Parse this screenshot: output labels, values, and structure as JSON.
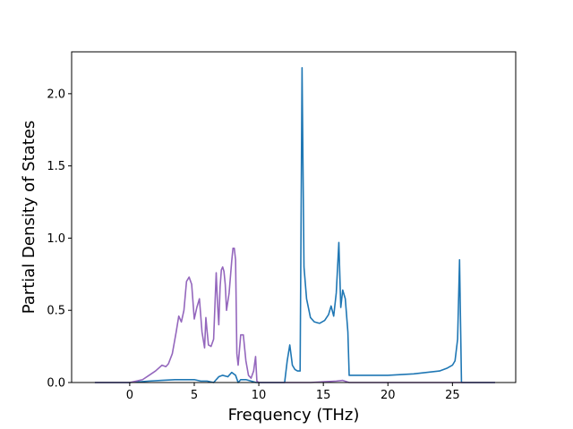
{
  "chart_data": {
    "type": "line",
    "title": "",
    "xlabel": "Frequency (THz)",
    "ylabel": "Partial Density of States",
    "xlim": [
      -4.5,
      29.9
    ],
    "ylim": [
      0,
      2.29
    ],
    "xticks": [
      0,
      5,
      10,
      15,
      20,
      25
    ],
    "yticks": [
      0.0,
      0.5,
      1.0,
      1.5,
      2.0
    ],
    "xtick_labels": [
      "0",
      "5",
      "10",
      "15",
      "20",
      "25"
    ],
    "ytick_labels": [
      "0.0",
      "0.5",
      "1.0",
      "1.5",
      "2.0"
    ],
    "grid": false,
    "legend": "none",
    "series": [
      {
        "color": "#1f77b4",
        "x": [
          -2.7,
          0.0,
          1.5,
          2.5,
          3.5,
          4.5,
          5.0,
          5.5,
          6.0,
          6.5,
          6.9,
          7.2,
          7.6,
          7.9,
          8.2,
          8.4,
          8.6,
          8.8,
          9.0,
          9.4,
          9.8,
          10.0,
          12.0,
          12.2,
          12.4,
          12.6,
          12.8,
          13.0,
          13.2,
          13.35,
          13.5,
          13.7,
          14.0,
          14.3,
          14.7,
          15.1,
          15.4,
          15.6,
          15.8,
          16.0,
          16.2,
          16.35,
          16.5,
          16.7,
          16.9,
          17.0,
          17.3,
          20.0,
          22.0,
          24.0,
          24.6,
          25.0,
          25.2,
          25.4,
          25.55,
          25.7,
          25.8,
          28.3
        ],
        "y": [
          0.0,
          0.0,
          0.01,
          0.015,
          0.02,
          0.02,
          0.02,
          0.01,
          0.01,
          0.0,
          0.04,
          0.05,
          0.04,
          0.07,
          0.05,
          0.0,
          0.02,
          0.02,
          0.02,
          0.01,
          0.0,
          0.0,
          0.0,
          0.15,
          0.26,
          0.12,
          0.09,
          0.08,
          0.08,
          2.18,
          0.8,
          0.58,
          0.45,
          0.42,
          0.41,
          0.43,
          0.47,
          0.53,
          0.46,
          0.62,
          0.97,
          0.52,
          0.64,
          0.58,
          0.35,
          0.05,
          0.05,
          0.05,
          0.06,
          0.08,
          0.1,
          0.12,
          0.15,
          0.3,
          0.85,
          0.0,
          0.0,
          0.0
        ]
      },
      {
        "color": "#9467bd",
        "x": [
          -2.7,
          0.0,
          0.5,
          1.0,
          1.5,
          2.0,
          2.5,
          2.8,
          3.0,
          3.3,
          3.6,
          3.8,
          4.0,
          4.2,
          4.4,
          4.6,
          4.8,
          5.0,
          5.2,
          5.4,
          5.6,
          5.8,
          5.9,
          6.0,
          6.1,
          6.3,
          6.5,
          6.7,
          6.8,
          6.9,
          7.0,
          7.1,
          7.2,
          7.3,
          7.4,
          7.5,
          7.7,
          7.9,
          8.0,
          8.1,
          8.2,
          8.3,
          8.4,
          8.6,
          8.8,
          9.0,
          9.2,
          9.4,
          9.6,
          9.75,
          9.85,
          10.0,
          14.0,
          15.0,
          16.0,
          16.5,
          17.0,
          20.0,
          28.3
        ],
        "y": [
          0.0,
          0.0,
          0.01,
          0.02,
          0.05,
          0.08,
          0.12,
          0.11,
          0.13,
          0.2,
          0.35,
          0.46,
          0.42,
          0.5,
          0.7,
          0.73,
          0.68,
          0.44,
          0.52,
          0.58,
          0.35,
          0.24,
          0.45,
          0.35,
          0.26,
          0.25,
          0.3,
          0.76,
          0.55,
          0.4,
          0.66,
          0.78,
          0.8,
          0.77,
          0.68,
          0.5,
          0.62,
          0.84,
          0.93,
          0.93,
          0.85,
          0.2,
          0.12,
          0.33,
          0.33,
          0.15,
          0.05,
          0.03,
          0.08,
          0.18,
          0.01,
          0.0,
          0.0,
          0.005,
          0.01,
          0.015,
          0.0,
          0.0,
          0.0
        ]
      }
    ]
  }
}
